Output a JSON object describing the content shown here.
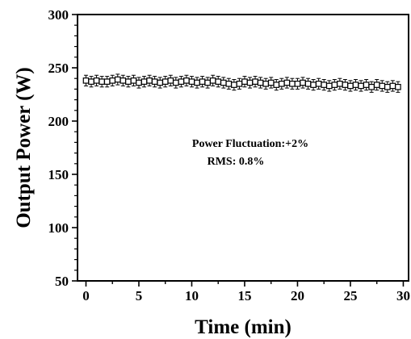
{
  "chart_data": {
    "type": "scatter",
    "xlabel": "Time (min)",
    "ylabel": "Output Power (W)",
    "xlim": [
      -0.8,
      30.5
    ],
    "ylim": [
      50,
      300
    ],
    "xticks": [
      0,
      5,
      10,
      15,
      20,
      25,
      30
    ],
    "yticks": [
      50,
      100,
      150,
      200,
      250,
      300
    ],
    "grid": false,
    "annotations": [
      "Power Fluctuation:+2%",
      "RMS: 0.8%"
    ],
    "series": [
      {
        "marker": "open-square",
        "error_bar": 5,
        "x": [
          0.0,
          0.5,
          1.0,
          1.5,
          2.0,
          2.5,
          3.0,
          3.5,
          4.0,
          4.5,
          5.0,
          5.5,
          6.0,
          6.5,
          7.0,
          7.5,
          8.0,
          8.5,
          9.0,
          9.5,
          10.0,
          10.5,
          11.0,
          11.5,
          12.0,
          12.5,
          13.0,
          13.5,
          14.0,
          14.5,
          15.0,
          15.5,
          16.0,
          16.5,
          17.0,
          17.5,
          18.0,
          18.5,
          19.0,
          19.5,
          20.0,
          20.5,
          21.0,
          21.5,
          22.0,
          22.5,
          23.0,
          23.5,
          24.0,
          24.5,
          25.0,
          25.5,
          26.0,
          26.5,
          27.0,
          27.5,
          28.0,
          28.5,
          29.0,
          29.5
        ],
        "y": [
          238,
          237,
          238,
          237,
          237,
          238,
          239,
          238,
          237,
          238,
          236,
          237,
          238,
          237,
          236,
          237,
          238,
          236,
          237,
          238,
          237,
          236,
          237,
          236,
          238,
          237,
          236,
          235,
          234,
          235,
          237,
          236,
          237,
          236,
          235,
          236,
          234,
          235,
          236,
          235,
          235,
          236,
          235,
          234,
          235,
          234,
          233,
          234,
          235,
          234,
          233,
          234,
          233,
          234,
          232,
          234,
          233,
          232,
          233,
          232
        ]
      }
    ]
  }
}
